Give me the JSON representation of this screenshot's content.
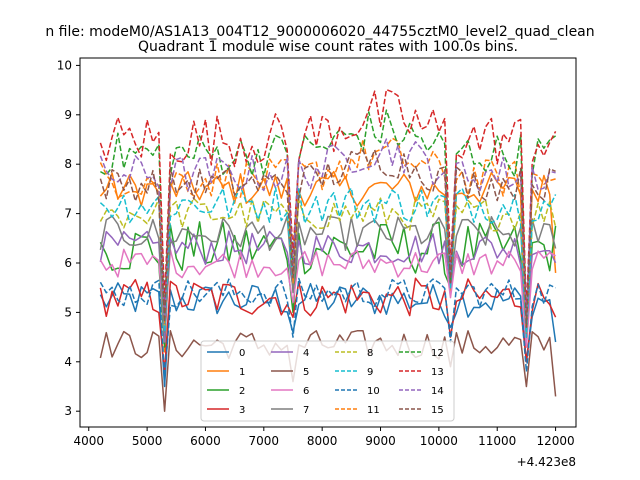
{
  "chart_data": {
    "type": "line",
    "suptitle": "n file: modeM0/AS1A13_004T12_9000006020_44755cztM0_level2_quad_clean",
    "title": "Quadrant 1 module wise count rates with 100.0s bins.",
    "xlabel": "",
    "ylabel": "",
    "x_offset_label": "+4.423e8",
    "xlim": [
      3850,
      12350
    ],
    "ylim": [
      2.68,
      10.15
    ],
    "xticks": [
      4000,
      5000,
      6000,
      7000,
      8000,
      9000,
      10000,
      11000,
      12000
    ],
    "yticks": [
      3,
      4,
      5,
      6,
      7,
      8,
      9,
      10
    ],
    "grid": false,
    "legend_position": "lower center",
    "x": {
      "start": 4200,
      "end": 12000,
      "step": 100
    },
    "series": [
      {
        "name": "0",
        "color": "#1f77b4",
        "style": "solid",
        "base": 5.25,
        "var": 0.35,
        "dips": [
          [
            5300,
            3.5
          ],
          [
            7500,
            4.6
          ],
          [
            10200,
            4.7
          ],
          [
            11500,
            4.0
          ],
          [
            12000,
            4.4
          ]
        ]
      },
      {
        "name": "1",
        "color": "#ff7f0e",
        "style": "solid",
        "base": 7.5,
        "var": 0.35,
        "dips": [
          [
            5300,
            4.2
          ],
          [
            7500,
            5.8
          ],
          [
            10200,
            5.4
          ],
          [
            11500,
            4.6
          ],
          [
            12000,
            5.8
          ]
        ]
      },
      {
        "name": "2",
        "color": "#2ca02c",
        "style": "solid",
        "base": 6.3,
        "var": 0.55,
        "dips": [
          [
            5300,
            4.3
          ],
          [
            7500,
            5.0
          ],
          [
            10200,
            5.5
          ],
          [
            11500,
            4.3
          ]
        ]
      },
      {
        "name": "3",
        "color": "#d62728",
        "style": "solid",
        "base": 5.3,
        "var": 0.4,
        "dips": [
          [
            5300,
            3.8
          ],
          [
            7500,
            4.9
          ],
          [
            10200,
            4.5
          ],
          [
            11500,
            4.0
          ]
        ]
      },
      {
        "name": "4",
        "color": "#9467bd",
        "style": "solid",
        "base": 6.3,
        "var": 0.35,
        "dips": [
          [
            5300,
            4.4
          ],
          [
            7500,
            5.5
          ],
          [
            10200,
            5.5
          ],
          [
            11500,
            4.7
          ]
        ]
      },
      {
        "name": "5",
        "color": "#8c564b",
        "style": "solid",
        "base": 4.35,
        "var": 0.3,
        "dips": [
          [
            5300,
            3.0
          ],
          [
            7500,
            3.6
          ],
          [
            10200,
            3.9
          ],
          [
            11500,
            3.5
          ],
          [
            12000,
            3.3
          ]
        ]
      },
      {
        "name": "6",
        "color": "#e377c2",
        "style": "solid",
        "base": 6.0,
        "var": 0.3,
        "dips": [
          [
            5300,
            4.6
          ],
          [
            7500,
            5.2
          ],
          [
            10200,
            5.3
          ],
          [
            11500,
            4.3
          ]
        ]
      },
      {
        "name": "7",
        "color": "#7f7f7f",
        "style": "solid",
        "base": 6.6,
        "var": 0.35,
        "dips": [
          [
            5300,
            4.6
          ],
          [
            7500,
            5.4
          ],
          [
            10200,
            5.6
          ],
          [
            11500,
            4.5
          ]
        ]
      },
      {
        "name": "8",
        "color": "#bcbd22",
        "style": "dashed",
        "base": 7.0,
        "var": 0.35,
        "dips": [
          [
            5300,
            4.7
          ],
          [
            7500,
            5.8
          ],
          [
            10200,
            5.7
          ],
          [
            11500,
            4.6
          ]
        ]
      },
      {
        "name": "9",
        "color": "#17becf",
        "style": "dashed",
        "base": 7.2,
        "var": 0.4,
        "dips": [
          [
            5300,
            4.6
          ],
          [
            7500,
            5.6
          ],
          [
            10200,
            5.5
          ],
          [
            11500,
            4.5
          ]
        ]
      },
      {
        "name": "10",
        "color": "#1f77b4",
        "style": "dashed",
        "base": 5.4,
        "var": 0.3,
        "dips": [
          [
            5300,
            3.7
          ],
          [
            7500,
            4.5
          ],
          [
            10200,
            4.4
          ],
          [
            11500,
            3.8
          ]
        ]
      },
      {
        "name": "11",
        "color": "#ff7f0e",
        "style": "dashed",
        "base": 7.7,
        "var": 0.4,
        "dips": [
          [
            5300,
            4.8
          ],
          [
            7500,
            5.6
          ],
          [
            10200,
            5.7
          ],
          [
            11500,
            4.7
          ]
        ]
      },
      {
        "name": "12",
        "color": "#2ca02c",
        "style": "dashed",
        "base": 8.2,
        "var": 0.45,
        "dips": [
          [
            5300,
            5.0
          ],
          [
            7500,
            6.0
          ],
          [
            10200,
            5.6
          ],
          [
            11500,
            4.8
          ]
        ]
      },
      {
        "name": "13",
        "color": "#d62728",
        "style": "dashed",
        "base": 8.5,
        "var": 0.55,
        "dips": [
          [
            5300,
            5.2
          ],
          [
            7500,
            6.2
          ],
          [
            10200,
            6.0
          ],
          [
            11500,
            5.0
          ]
        ]
      },
      {
        "name": "14",
        "color": "#9467bd",
        "style": "dashed",
        "base": 7.8,
        "var": 0.4,
        "dips": [
          [
            5300,
            4.9
          ],
          [
            7500,
            5.8
          ],
          [
            10200,
            5.8
          ],
          [
            11500,
            4.8
          ]
        ]
      },
      {
        "name": "15",
        "color": "#8c564b",
        "style": "dashed",
        "base": 7.6,
        "var": 0.35,
        "dips": [
          [
            5300,
            4.8
          ],
          [
            7500,
            5.7
          ],
          [
            10200,
            5.6
          ],
          [
            11500,
            4.7
          ]
        ]
      }
    ]
  }
}
